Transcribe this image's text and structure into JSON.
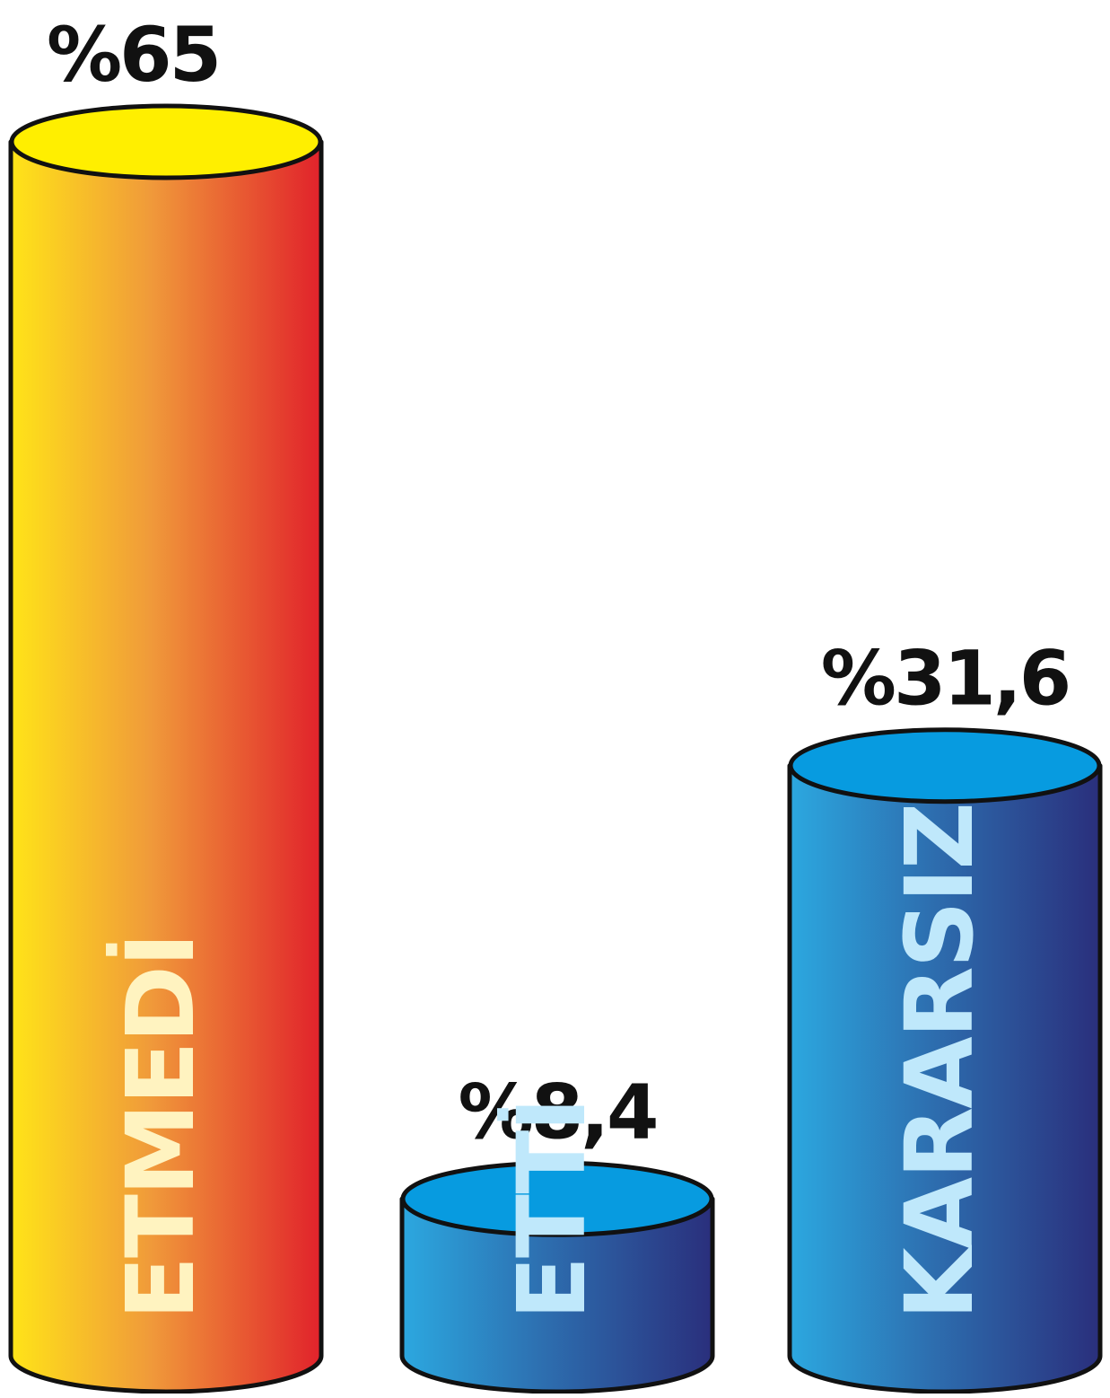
{
  "chart_data": {
    "type": "bar",
    "style": "3d-cylinder",
    "categories": [
      "ETMEDİ",
      "ETTİ",
      "KARARSIZ"
    ],
    "values": [
      65,
      8.4,
      31.6
    ],
    "value_labels": [
      "%65",
      "%8,4",
      "%31,6"
    ],
    "unit": "%",
    "title": "",
    "xlabel": "",
    "ylabel": "",
    "ylim": [
      0,
      65
    ],
    "grid": false,
    "legend": "none",
    "bar_colors": [
      {
        "light": "#ffe418",
        "mid": "#f09a3a",
        "dark": "#e1222b",
        "top": "#ffef00",
        "text": "#fff3c0"
      },
      {
        "light": "#2ca8e0",
        "mid": "#2d6fb0",
        "dark": "#2a2f7c",
        "top": "#079be0",
        "text": "#bfe8fb"
      },
      {
        "light": "#2ca8e0",
        "mid": "#2d6fb0",
        "dark": "#2a2f7c",
        "top": "#079be0",
        "text": "#bfe8fb"
      }
    ]
  }
}
